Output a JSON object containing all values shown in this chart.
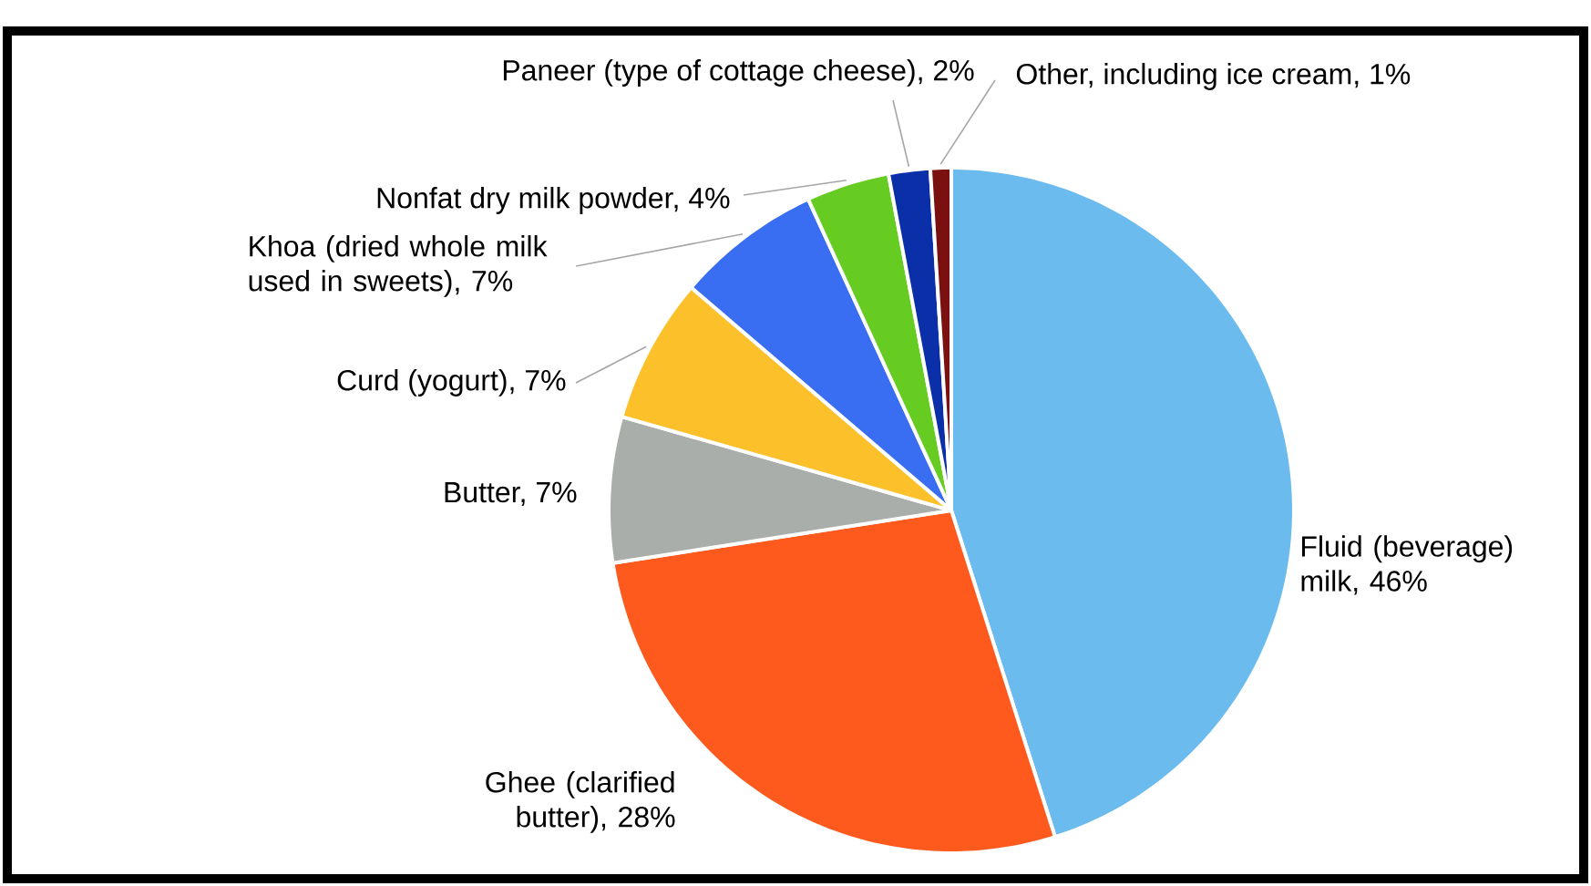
{
  "chart_data": {
    "type": "pie",
    "categories": [
      "Fluid (beverage) milk, 46%",
      "Ghee (clarified butter), 28%",
      "Butter, 7%",
      "Curd (yogurt), 7%",
      "Khoa (dried whole milk used in sweets), 7%",
      "Nonfat dry milk powder, 4%",
      "Paneer (type of cottage cheese), 2%",
      "Other, including ice cream, 1%"
    ],
    "values": [
      46,
      28,
      7,
      7,
      7,
      4,
      2,
      1
    ],
    "colors": [
      "#6bbbee",
      "#ff5a1e",
      "#a9aeaa",
      "#fcc02a",
      "#3a6ef2",
      "#66cc22",
      "#0a2fa8",
      "#7a1010"
    ]
  }
}
